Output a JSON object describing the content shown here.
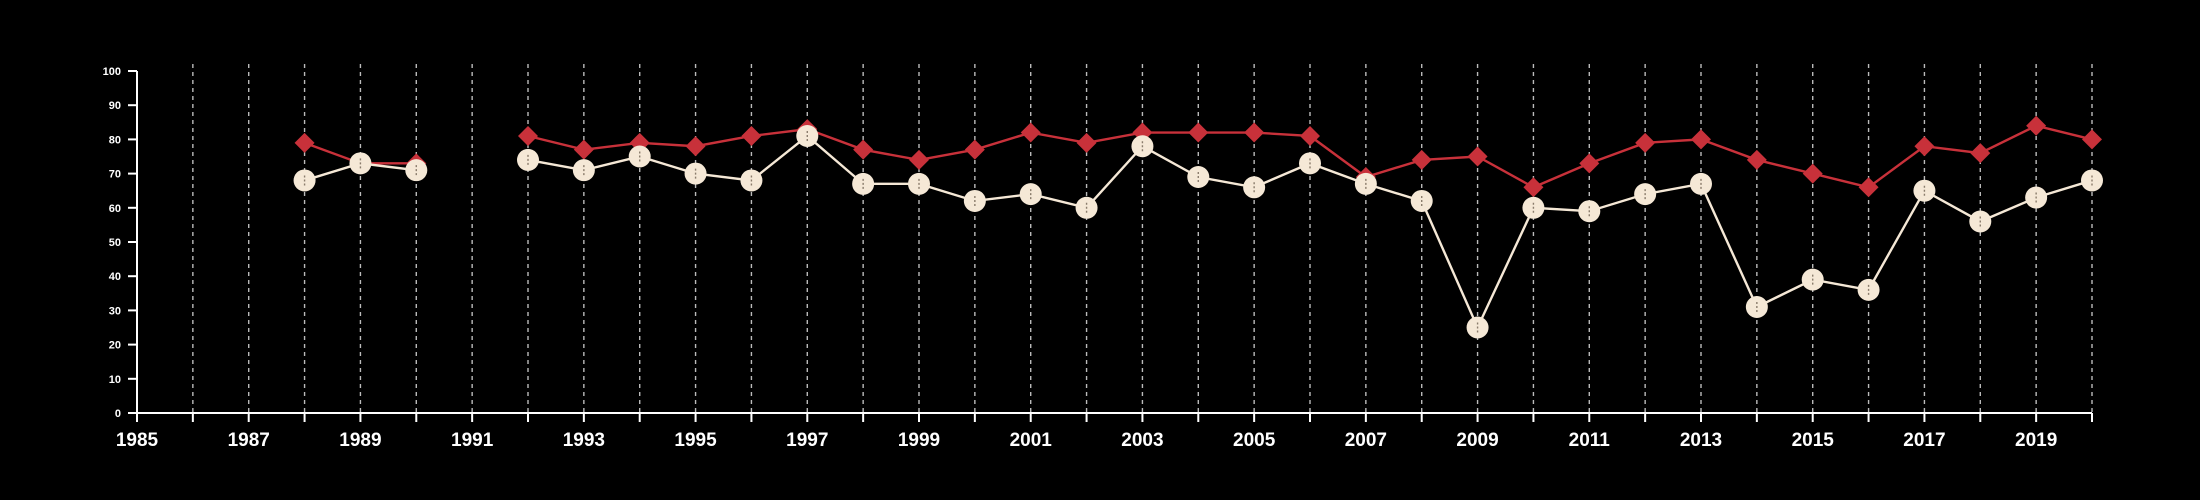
{
  "chart_data": {
    "type": "line",
    "title": "",
    "xlabel": "",
    "ylabel": "",
    "xlim": [
      1985,
      2020
    ],
    "ylim": [
      0,
      100
    ],
    "x_ticks": [
      1985,
      1987,
      1989,
      1991,
      1993,
      1995,
      1997,
      1999,
      2001,
      2003,
      2005,
      2007,
      2009,
      2011,
      2013,
      2015,
      2017,
      2019
    ],
    "y_ticks": [
      0,
      10,
      20,
      30,
      40,
      50,
      60,
      70,
      80,
      90,
      100
    ],
    "grid": "vertical dashed lines at every year",
    "legend": "none",
    "colors": {
      "background": "#000000",
      "axis": "#ffffff",
      "grid": "#bbbbbb",
      "series_red": "#c8313a",
      "series_light": "#f5e8d6"
    },
    "series": [
      {
        "marker": "diamond",
        "color": "#c8313a",
        "points": [
          [
            1988,
            79
          ],
          [
            1989,
            73
          ],
          [
            1990,
            73
          ],
          [
            1991,
            null
          ],
          [
            1992,
            81
          ],
          [
            1993,
            77
          ],
          [
            1994,
            79
          ],
          [
            1995,
            78
          ],
          [
            1996,
            81
          ],
          [
            1997,
            83
          ],
          [
            1998,
            77
          ],
          [
            1999,
            74
          ],
          [
            2000,
            77
          ],
          [
            2001,
            82
          ],
          [
            2002,
            79
          ],
          [
            2003,
            82
          ],
          [
            2004,
            82
          ],
          [
            2005,
            82
          ],
          [
            2006,
            81
          ],
          [
            2007,
            69
          ],
          [
            2008,
            74
          ],
          [
            2009,
            75
          ],
          [
            2010,
            66
          ],
          [
            2011,
            73
          ],
          [
            2012,
            79
          ],
          [
            2013,
            80
          ],
          [
            2014,
            74
          ],
          [
            2015,
            70
          ],
          [
            2016,
            66
          ],
          [
            2017,
            78
          ],
          [
            2018,
            76
          ],
          [
            2019,
            84
          ],
          [
            2020,
            80
          ]
        ]
      },
      {
        "marker": "circle",
        "color": "#f5e8d6",
        "points": [
          [
            1988,
            68
          ],
          [
            1989,
            73
          ],
          [
            1990,
            71
          ],
          [
            1991,
            null
          ],
          [
            1992,
            74
          ],
          [
            1993,
            71
          ],
          [
            1994,
            75
          ],
          [
            1995,
            70
          ],
          [
            1996,
            68
          ],
          [
            1997,
            81
          ],
          [
            1998,
            67
          ],
          [
            1999,
            67
          ],
          [
            2000,
            62
          ],
          [
            2001,
            64
          ],
          [
            2002,
            60
          ],
          [
            2003,
            78
          ],
          [
            2004,
            69
          ],
          [
            2005,
            66
          ],
          [
            2006,
            73
          ],
          [
            2007,
            67
          ],
          [
            2008,
            62
          ],
          [
            2009,
            25
          ],
          [
            2010,
            60
          ],
          [
            2011,
            59
          ],
          [
            2012,
            64
          ],
          [
            2013,
            67
          ],
          [
            2014,
            31
          ],
          [
            2015,
            39
          ],
          [
            2016,
            36
          ],
          [
            2017,
            65
          ],
          [
            2018,
            56
          ],
          [
            2019,
            63
          ],
          [
            2020,
            68
          ]
        ]
      }
    ]
  }
}
